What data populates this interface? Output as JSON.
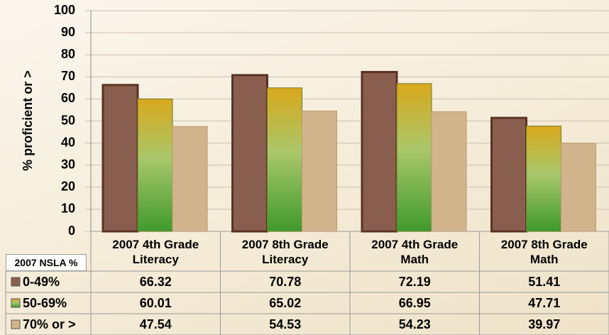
{
  "chart_data": {
    "type": "bar",
    "y_label": "% proficient or >",
    "legend_title": "2007 NSLA %",
    "categories": [
      "2007 4th Grade Literacy",
      "2007 8th Grade Literacy",
      "2007 4th Grade Math",
      "2007 8th Grade Math"
    ],
    "series": [
      {
        "name": "0-49%",
        "color": "#8a5e4e",
        "values": [
          66.32,
          70.78,
          72.19,
          51.41
        ]
      },
      {
        "name": "50-69%",
        "color": "#3f9a2c",
        "values": [
          60.01,
          65.02,
          66.95,
          47.71
        ]
      },
      {
        "name": "70% or >",
        "color": "#d2b48c",
        "values": [
          47.54,
          54.53,
          54.23,
          39.97
        ]
      }
    ],
    "ylim": [
      0,
      100
    ],
    "yticks": [
      0,
      10,
      20,
      30,
      40,
      50,
      60,
      70,
      80,
      90,
      100
    ],
    "grid": true
  }
}
